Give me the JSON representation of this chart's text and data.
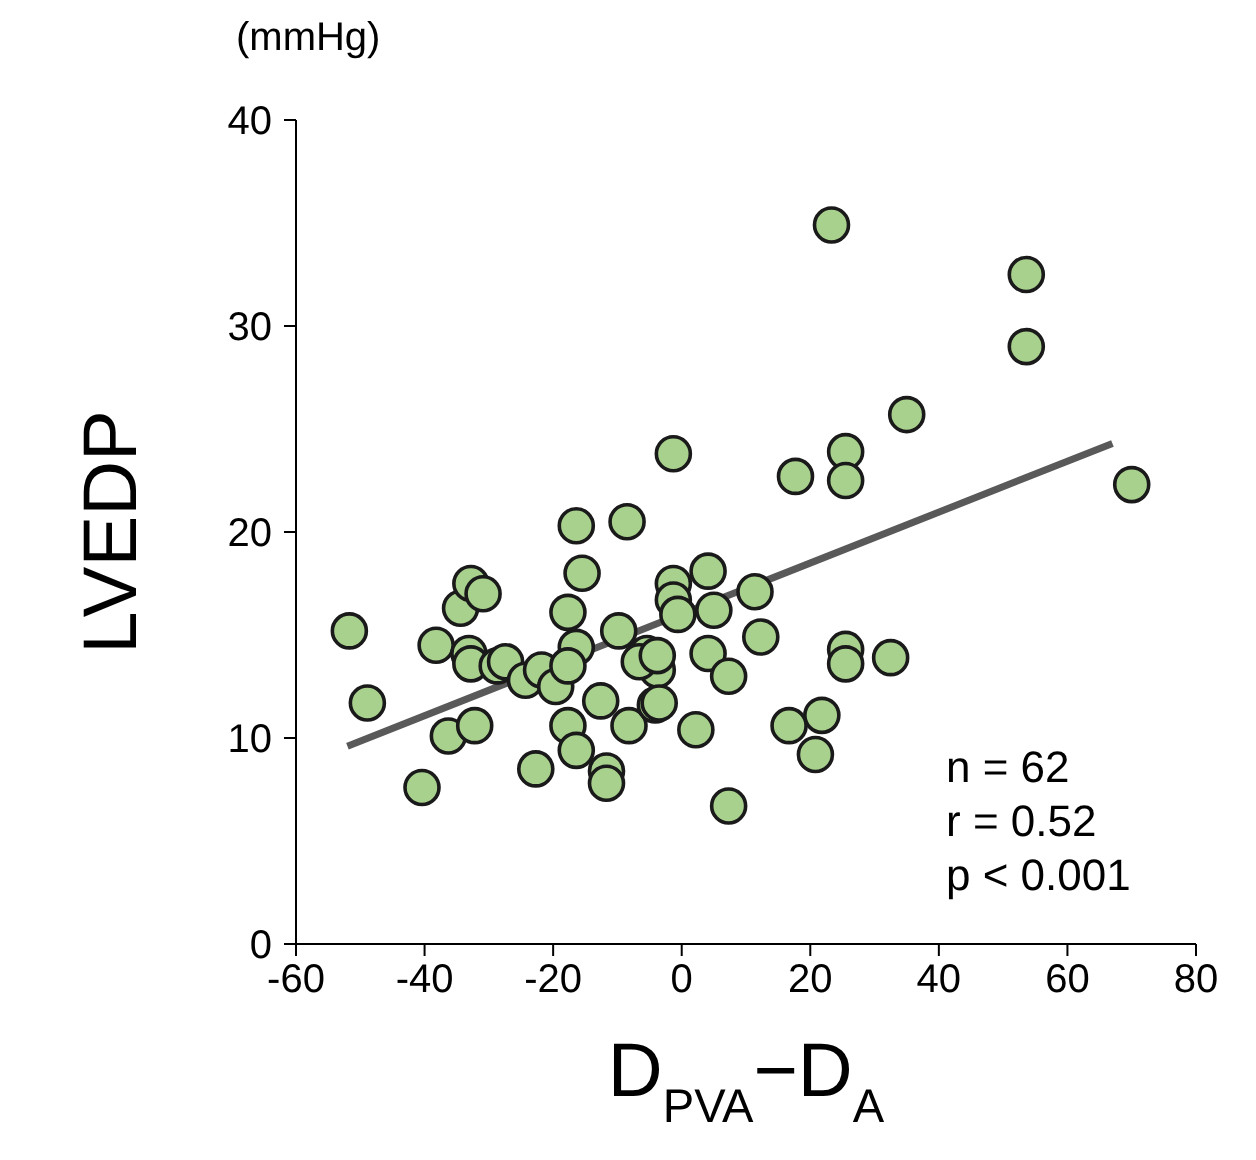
{
  "chart_data": {
    "type": "scatter",
    "xlabel": "D$_{PVA}$−D$_{A}$",
    "ylabel": "LVEDP",
    "xlim": [
      -60,
      80
    ],
    "xticks": [
      -60,
      -40,
      -20,
      0,
      20,
      40,
      60,
      80
    ],
    "ylim": [
      0,
      40
    ],
    "yticks": [
      0,
      10,
      20,
      30,
      40
    ],
    "grid": false,
    "legend": false,
    "annotations": [
      "(mmHg)",
      "n = 62",
      "r = 0.52",
      "p < 0.001"
    ],
    "series": [
      {
        "marker": "circle",
        "color": "#a9d18e",
        "x": [
          -51.7,
          -48.9,
          -40.4,
          -38.2,
          -36.3,
          -32.2,
          -34.4,
          -32.8,
          -30.9,
          -33.1,
          -32.8,
          -28.7,
          -27.4,
          -24.3,
          -22.7,
          -21.8,
          -19.6,
          -17.7,
          -16.4,
          -15.5,
          -16.4,
          -17.7,
          -17.7,
          -16.4,
          -12.6,
          -11.7,
          -11.7,
          -8.5,
          -9.8,
          -8.2,
          -5.4,
          -3.8,
          -4.1,
          -6.6,
          -1.3,
          4.1,
          -1.3,
          -1.3,
          -0.6,
          5,
          4.1,
          2.2,
          7.3,
          23.3,
          53.6,
          53.6,
          35,
          17.7,
          25.5,
          25.5,
          70,
          11.4,
          12.3,
          25.5,
          25.5,
          32.5,
          21.8,
          16.7,
          20.8,
          7.3,
          -3.8,
          -3.5
        ],
        "values": [
          15.2,
          11.7,
          7.6,
          14.5,
          10.1,
          10.6,
          16.3,
          17.5,
          17,
          14.1,
          13.6,
          13.5,
          13.7,
          12.8,
          8.5,
          13.3,
          12.5,
          16.1,
          20.3,
          18,
          14.4,
          13.5,
          10.6,
          9.4,
          11.8,
          8.4,
          7.8,
          20.5,
          15.2,
          10.6,
          14.1,
          13.3,
          11.6,
          13.7,
          23.8,
          18.1,
          17.5,
          16.7,
          16,
          16.2,
          14.1,
          10.4,
          13,
          34.9,
          32.5,
          29,
          25.7,
          22.7,
          23.9,
          22.5,
          22.3,
          17.1,
          14.9,
          14.3,
          13.6,
          13.9,
          11.1,
          10.6,
          9.2,
          6.7,
          14,
          11.7
        ]
      },
      {
        "type": "line",
        "color": "#595959",
        "x": [
          -52,
          67
        ],
        "values": [
          9.6,
          24.3
        ]
      }
    ]
  }
}
